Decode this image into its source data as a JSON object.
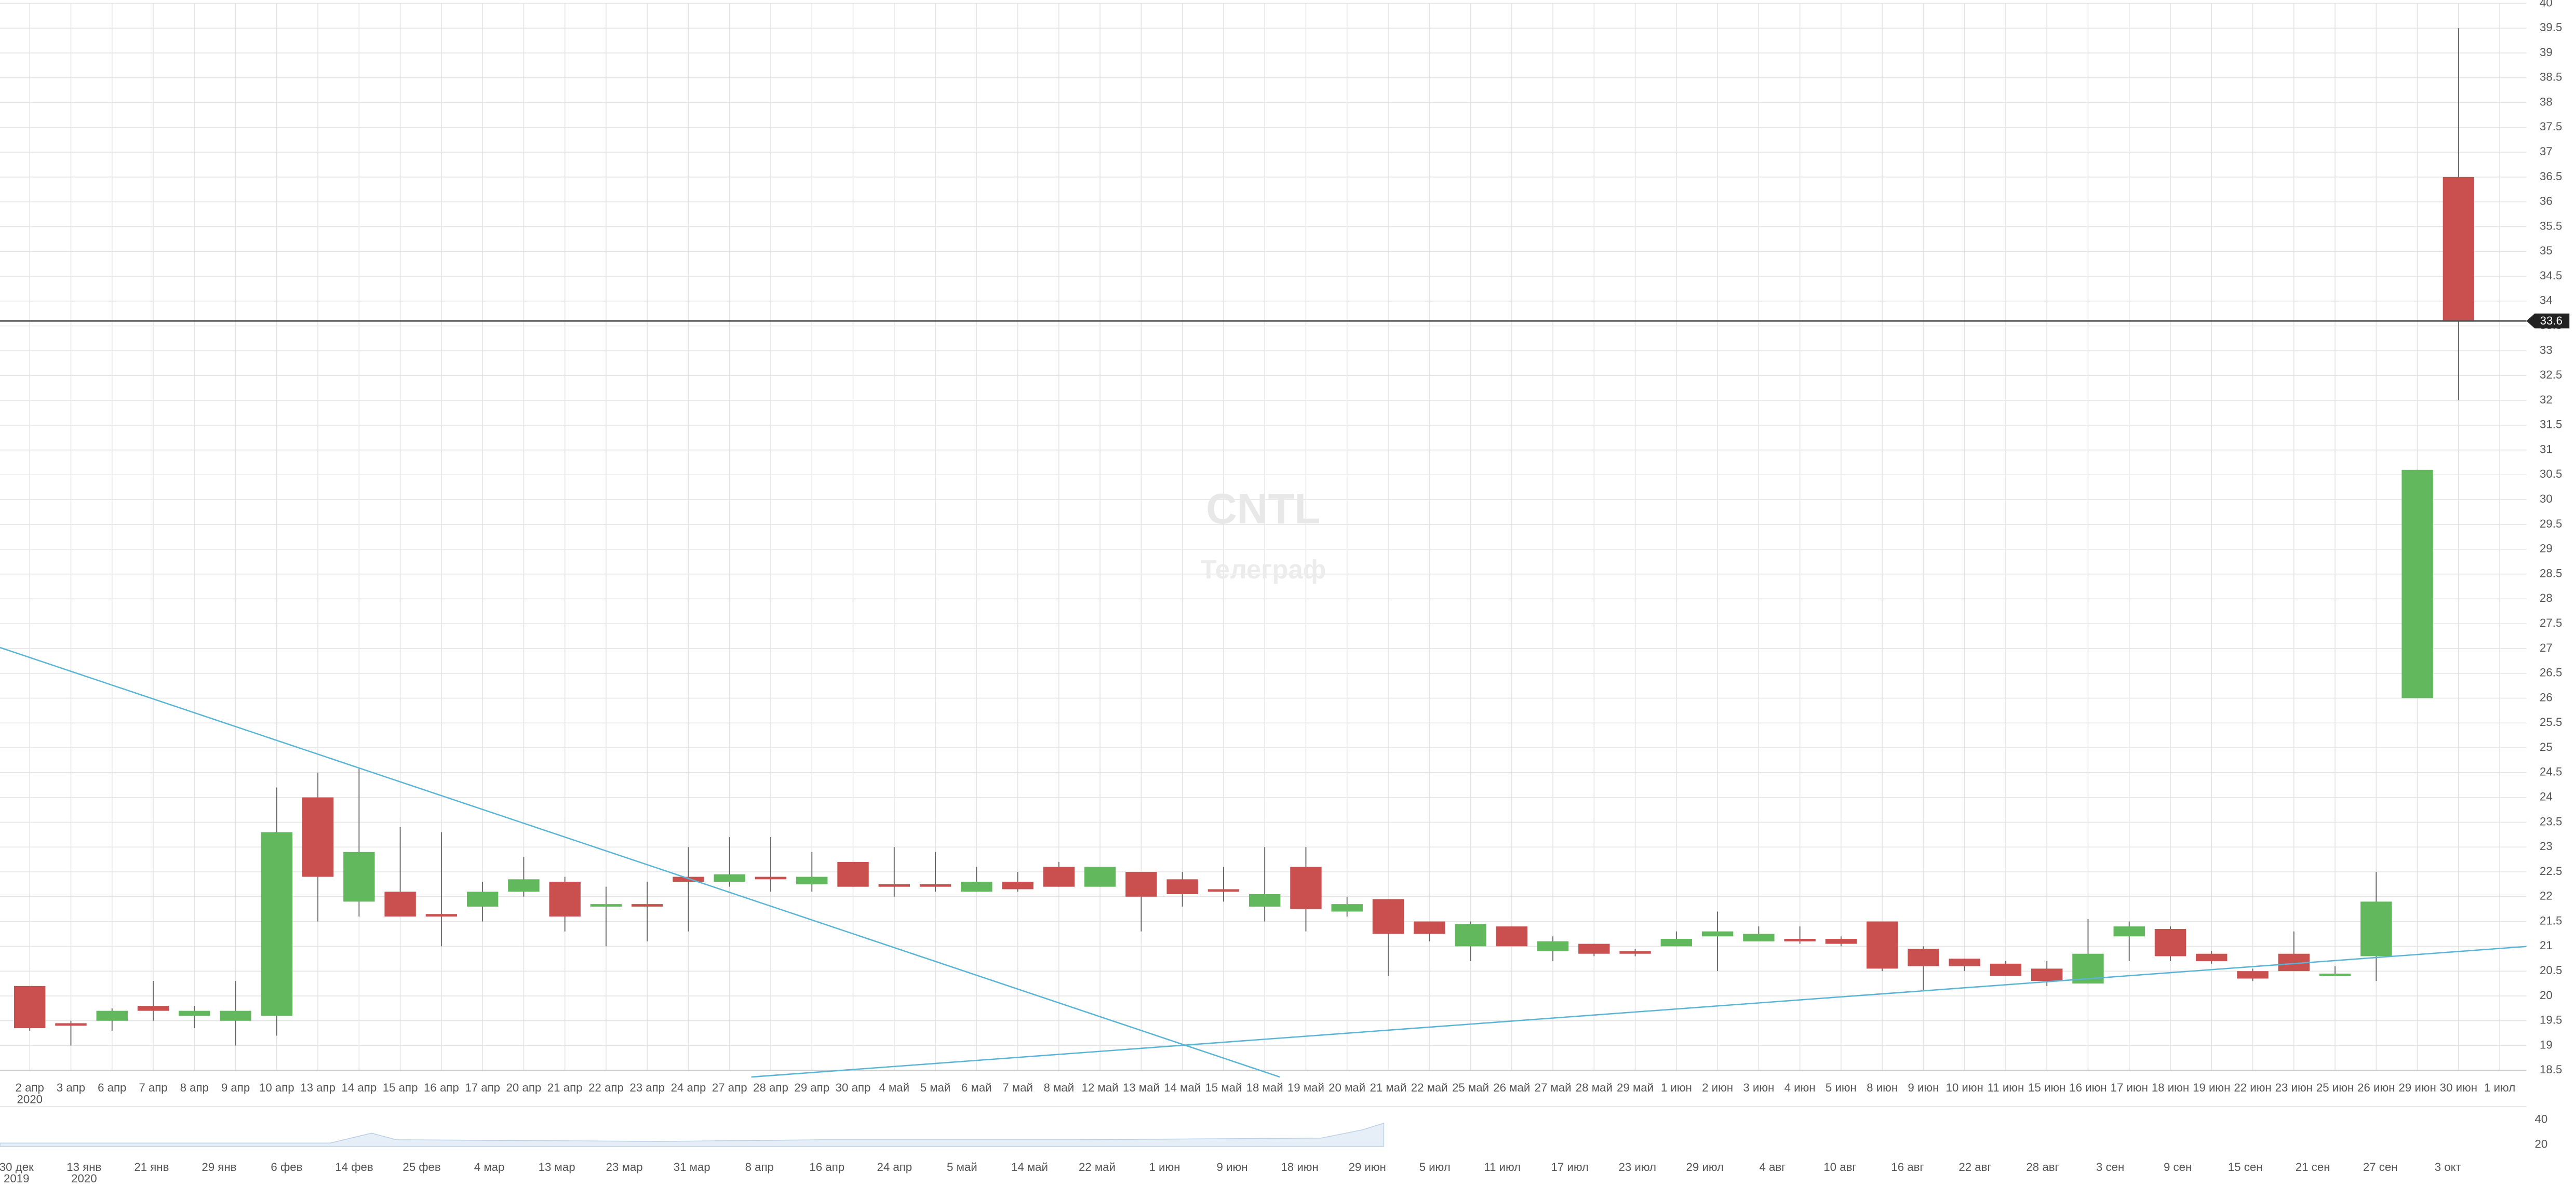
{
  "chart_data": {
    "type": "candlestick",
    "watermark": "CNTL",
    "watermark_subtitle": "Телеграф",
    "categories": [
      "2 апр",
      "3 апр",
      "6 апр",
      "7 апр",
      "8 апр",
      "9 апр",
      "10 апр",
      "13 апр",
      "14 апр",
      "15 апр",
      "16 апр",
      "17 апр",
      "20 апр",
      "21 апр",
      "22 апр",
      "23 апр",
      "24 апр",
      "27 апр",
      "28 апр",
      "29 апр",
      "30 апр",
      "4 май",
      "5 май",
      "6 май",
      "7 май",
      "8 май",
      "12 май",
      "13 май",
      "14 май",
      "15 май",
      "18 май",
      "19 май",
      "20 май",
      "21 май",
      "22 май",
      "25 май",
      "26 май",
      "27 май",
      "28 май",
      "29 май",
      "1 июн",
      "2 июн",
      "3 июн",
      "4 июн",
      "5 июн",
      "8 июн",
      "9 июн",
      "10 июн",
      "11 июн",
      "15 июн",
      "16 июн",
      "17 июн",
      "18 июн",
      "19 июн",
      "22 июн",
      "23 июн",
      "25 июн",
      "26 июн",
      "29 июн",
      "30 июн",
      "1 июл"
    ],
    "x_year_label": "2020",
    "open": [
      20.2,
      19.45,
      19.5,
      19.8,
      19.6,
      19.5,
      19.6,
      24.0,
      21.9,
      22.1,
      21.65,
      21.8,
      22.1,
      22.3,
      21.8,
      21.85,
      22.4,
      22.3,
      22.4,
      22.25,
      22.7,
      22.25,
      22.25,
      22.1,
      22.3,
      22.6,
      22.2,
      22.5,
      22.35,
      22.15,
      21.8,
      22.6,
      21.7,
      21.95,
      21.5,
      21.0,
      21.4,
      20.9,
      21.05,
      20.9,
      21.0,
      21.2,
      21.1,
      21.15,
      21.15,
      21.5,
      20.95,
      20.75,
      20.65,
      20.55,
      20.25,
      21.2,
      21.35,
      20.85,
      20.5,
      20.85,
      20.4,
      20.8,
      26.0,
      36.5,
      null
    ],
    "high": [
      20.2,
      19.5,
      19.75,
      20.3,
      19.8,
      20.3,
      24.2,
      24.5,
      24.6,
      23.4,
      23.3,
      22.3,
      22.8,
      22.4,
      22.2,
      22.3,
      23.0,
      23.2,
      23.2,
      22.9,
      22.7,
      23.0,
      22.9,
      22.6,
      22.5,
      22.7,
      22.6,
      22.5,
      22.5,
      22.6,
      23.0,
      23.0,
      22.0,
      21.95,
      21.5,
      21.5,
      21.4,
      21.2,
      21.05,
      20.95,
      21.3,
      21.7,
      21.4,
      21.4,
      21.2,
      21.5,
      21.0,
      20.75,
      20.7,
      20.7,
      21.55,
      21.5,
      21.4,
      20.9,
      20.55,
      21.3,
      20.6,
      22.5,
      30.6,
      39.5,
      null
    ],
    "low": [
      19.3,
      19.0,
      19.3,
      19.5,
      19.35,
      19.0,
      19.2,
      21.5,
      21.6,
      21.6,
      21.0,
      21.5,
      22.0,
      21.3,
      21.0,
      21.1,
      21.3,
      22.2,
      22.1,
      22.1,
      22.2,
      22.0,
      22.1,
      22.1,
      22.1,
      22.2,
      22.2,
      21.3,
      21.8,
      21.9,
      21.5,
      21.3,
      21.6,
      20.4,
      21.1,
      20.7,
      21.0,
      20.7,
      20.8,
      20.8,
      21.0,
      20.5,
      21.1,
      21.05,
      21.0,
      20.5,
      20.1,
      20.5,
      20.4,
      20.2,
      20.25,
      20.7,
      20.7,
      20.65,
      20.3,
      20.5,
      20.4,
      20.3,
      26.0,
      32.0,
      null
    ],
    "close": [
      19.35,
      19.4,
      19.7,
      19.7,
      19.7,
      19.7,
      23.3,
      22.4,
      22.9,
      21.6,
      21.6,
      22.1,
      22.35,
      21.6,
      21.85,
      21.8,
      22.3,
      22.45,
      22.35,
      22.4,
      22.2,
      22.2,
      22.2,
      22.3,
      22.15,
      22.2,
      22.6,
      22.0,
      22.05,
      22.1,
      22.05,
      21.75,
      21.85,
      21.25,
      21.25,
      21.45,
      21.0,
      21.1,
      20.85,
      20.85,
      21.15,
      21.3,
      21.25,
      21.1,
      21.05,
      20.55,
      20.6,
      20.6,
      20.4,
      20.3,
      20.85,
      21.4,
      20.8,
      20.7,
      20.35,
      20.5,
      20.45,
      21.9,
      30.6,
      33.6,
      null
    ],
    "up_color": "#62b85c",
    "down_color": "#c9504f",
    "ylim": [
      18.5,
      40
    ],
    "yticks": [
      18.5,
      19,
      19.5,
      20,
      20.5,
      21,
      21.5,
      22,
      22.5,
      23,
      23.5,
      24,
      24.5,
      25,
      25.5,
      26,
      26.5,
      27,
      27.5,
      28,
      28.5,
      29,
      29.5,
      30,
      30.5,
      31,
      31.5,
      32,
      32.5,
      33,
      33.5,
      34,
      34.5,
      35,
      35.5,
      36,
      36.5,
      37,
      37.5,
      38,
      38.5,
      39,
      39.5,
      40
    ],
    "grid": true,
    "last_price": 33.6,
    "navigator": {
      "labels": [
        "30 дек",
        "13 янв",
        "21 янв",
        "29 янв",
        "6 фев",
        "14 фев",
        "25 фев",
        "4 мар",
        "13 мар",
        "23 мар",
        "31 мар",
        "8 апр",
        "16 апр",
        "24 апр",
        "5 май",
        "14 май",
        "22 май",
        "1 июн",
        "9 июн",
        "18 июн",
        "29 июн",
        "5 июл",
        "11 июл",
        "17 июл",
        "23 июл",
        "29 июл",
        "4 авг",
        "10 авг",
        "16 авг",
        "22 авг",
        "28 авг",
        "3 сен",
        "9 сен",
        "15 сен",
        "21 сен",
        "27 сен",
        "3 окт"
      ],
      "year_labels": [
        "2019",
        "2020"
      ],
      "ylim": [
        20,
        40
      ],
      "yticks": [
        20,
        40
      ]
    }
  }
}
